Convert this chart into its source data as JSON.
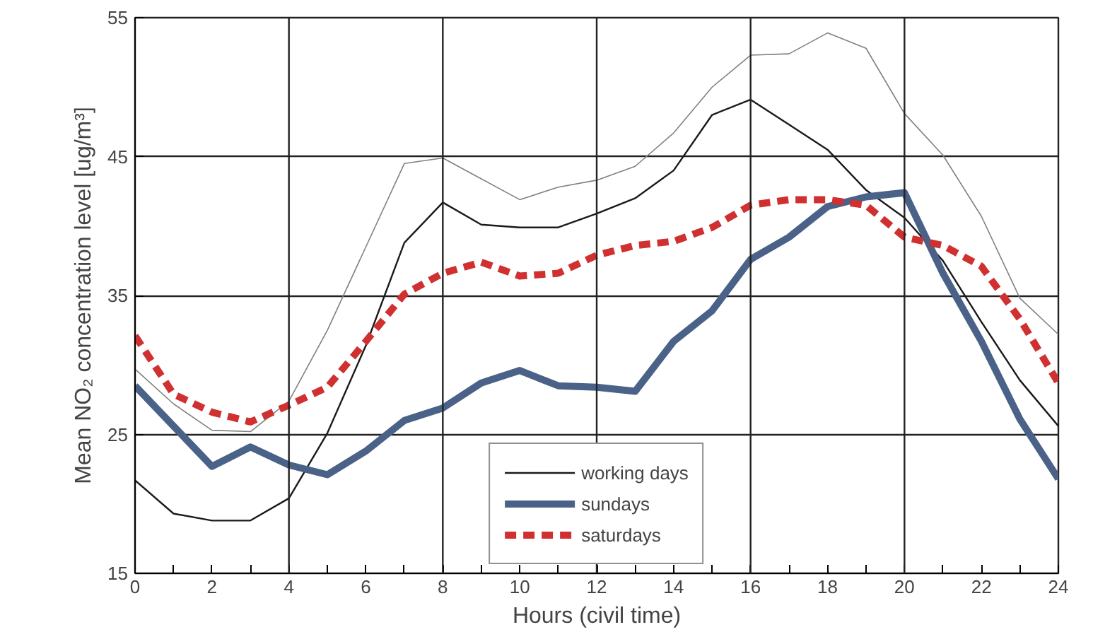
{
  "chart_data": {
    "type": "line",
    "xlabel": "Hours (civil time)",
    "ylabel": "Mean NO₂ concentration level [ug/m³]",
    "x": [
      0,
      1,
      2,
      3,
      4,
      5,
      6,
      7,
      8,
      9,
      10,
      11,
      12,
      13,
      14,
      15,
      16,
      17,
      18,
      19,
      20,
      21,
      22,
      23,
      24
    ],
    "xlim": [
      0,
      24
    ],
    "ylim": [
      15,
      55
    ],
    "xticks": [
      0,
      {
        "value": 1,
        "label": null
      },
      2,
      {
        "value": 3,
        "label": null
      },
      4,
      {
        "value": 5,
        "label": null
      },
      6,
      {
        "value": 7,
        "label": null
      },
      8,
      {
        "value": 9,
        "label": null
      },
      10,
      {
        "value": 11,
        "label": null
      },
      12,
      {
        "value": 13,
        "label": null
      },
      14,
      {
        "value": 15,
        "label": null
      },
      16,
      {
        "value": 17,
        "label": null
      },
      18,
      {
        "value": 19,
        "label": null
      },
      20,
      {
        "value": 21,
        "label": null
      },
      22,
      {
        "value": 23,
        "label": null
      },
      24
    ],
    "yticks": [
      15,
      25,
      35,
      45,
      55
    ],
    "grid": "y",
    "legend": "bottom",
    "marker": "none",
    "ref_lines": [
      {
        "axis": "x",
        "value": 4,
        "color": "#222222"
      },
      {
        "axis": "x",
        "value": 8,
        "color": "#222222"
      },
      {
        "axis": "x",
        "value": 12,
        "color": "#222222"
      },
      {
        "axis": "x",
        "value": 16,
        "color": "#222222"
      },
      {
        "axis": "x",
        "value": 20,
        "color": "#222222"
      }
    ],
    "series": [
      {
        "color": "#808080",
        "line_style": "solid",
        "values": [
          29.7,
          27.2,
          25.3,
          25.2,
          27.4,
          32.5,
          38.5,
          44.5,
          44.9,
          43.4,
          41.9,
          42.8,
          43.3,
          44.3,
          46.7,
          50,
          52.3,
          52.4,
          53.9,
          52.8,
          48.1,
          45.1,
          40.7,
          34.8,
          32.2
        ]
      },
      {
        "name": "working days",
        "color": "#1a1a1a",
        "line_style": "solid",
        "values": [
          21.7,
          19.3,
          18.8,
          18.8,
          20.4,
          25.1,
          31.4,
          38.8,
          41.7,
          40.1,
          39.9,
          39.9,
          40.9,
          42,
          44,
          48,
          49.1,
          47.3,
          45.5,
          42.6,
          40.6,
          37.5,
          33.1,
          28.9,
          25.6
        ]
      },
      {
        "name": "sundays",
        "color": "#4a6288",
        "line_style": "solid",
        "values": [
          28.5,
          25.6,
          22.7,
          24.1,
          22.8,
          22.1,
          23.8,
          26,
          26.9,
          28.7,
          29.6,
          28.5,
          28.4,
          28.1,
          31.7,
          33.9,
          37.6,
          39.2,
          41.4,
          42.1,
          42.4,
          36.6,
          31.7,
          26.1,
          21.8
        ]
      },
      {
        "name": "saturdays",
        "color": "#d03030",
        "line_style": "dashed",
        "values": [
          32.1,
          27.9,
          26.6,
          25.9,
          27.1,
          28.4,
          31.7,
          35.1,
          36.6,
          37.4,
          36.4,
          36.6,
          37.9,
          38.6,
          38.9,
          39.9,
          41.5,
          41.9,
          41.9,
          41.5,
          39.2,
          38.6,
          37.1,
          33.3,
          28.7
        ]
      }
    ]
  }
}
